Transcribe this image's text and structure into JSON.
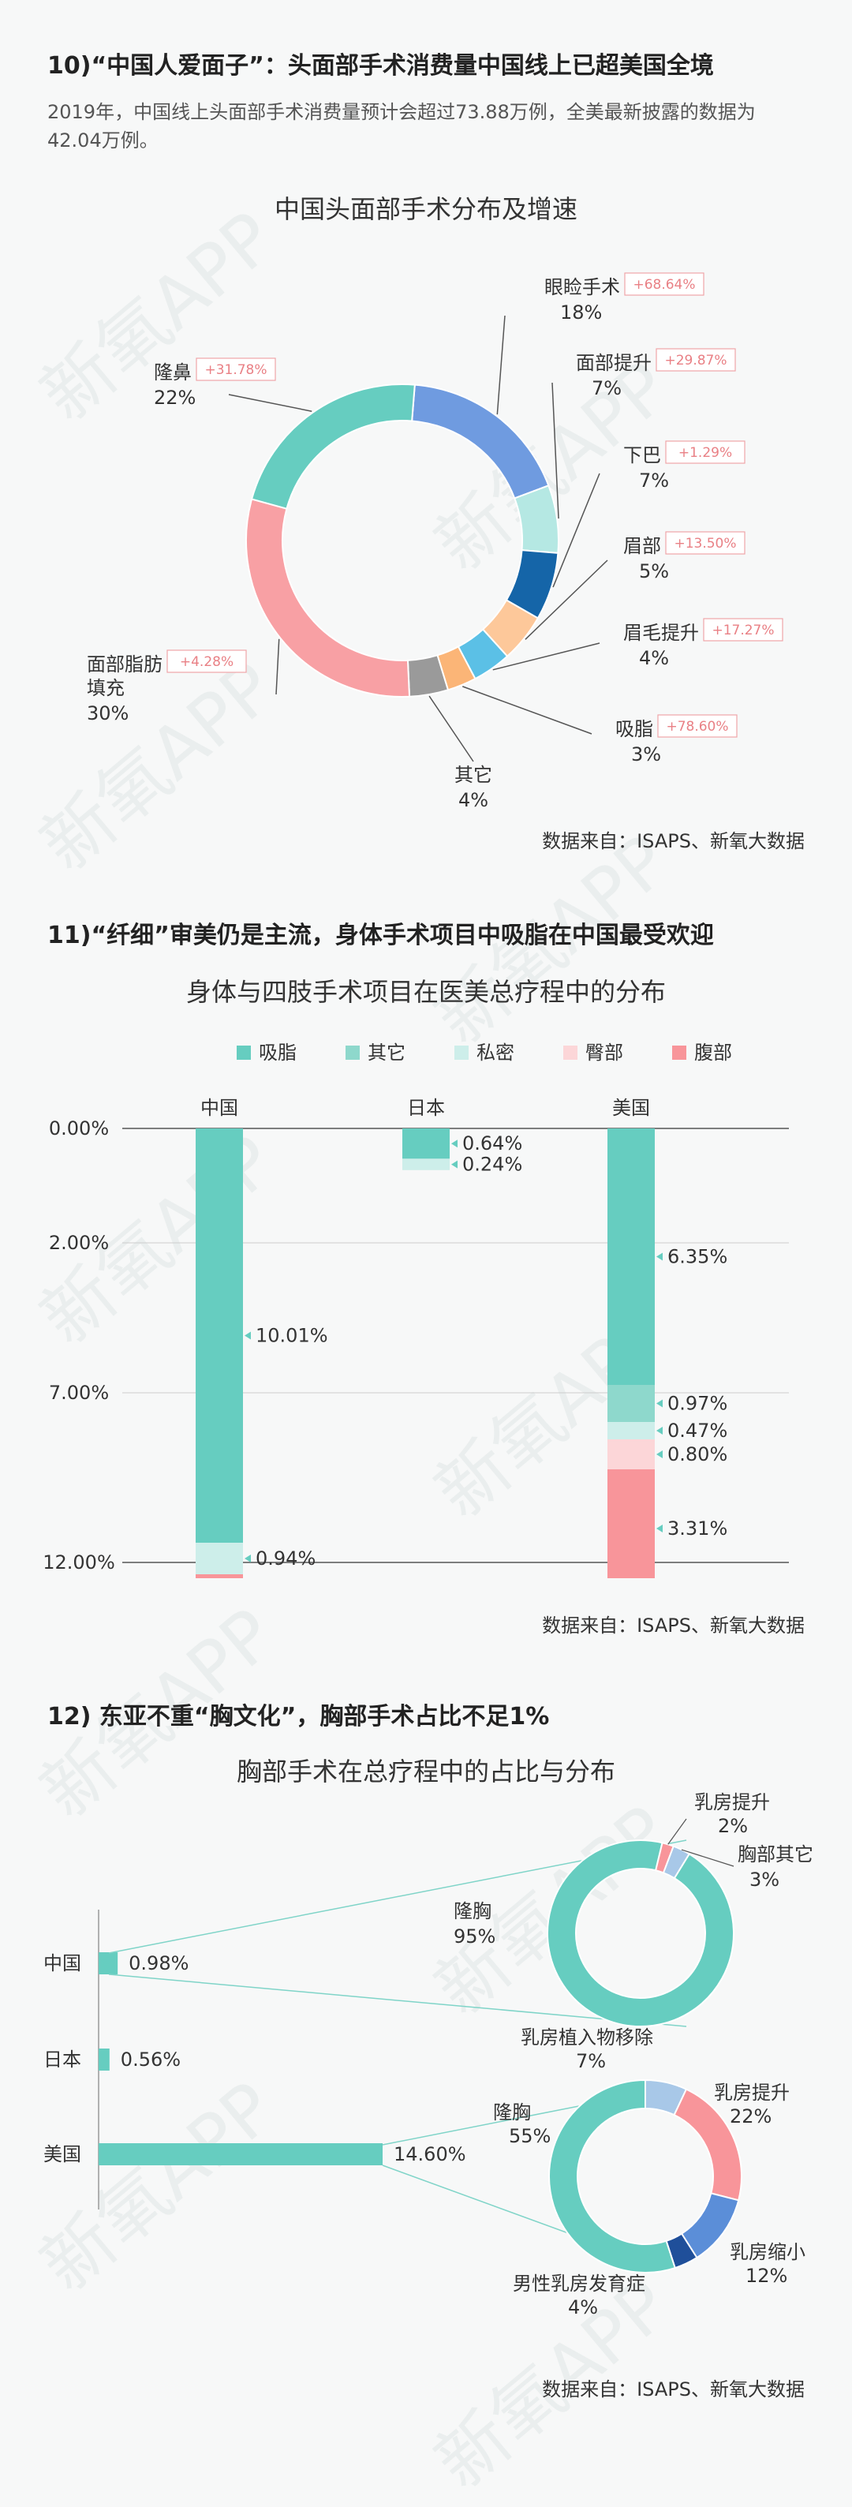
{
  "section10": {
    "heading": "10)“中国人爱面子”：头面部手术消费量中国线上已超美国全境",
    "subtitle": "2019年，中国线上头面部手术消费量预计会超过73.88万例，全美最新披露的数据为42.04万例。",
    "source": "数据来自：ISAPS、新氧大数据"
  },
  "section11": {
    "heading": "11)“纤细”审美仍是主流，身体手术项目中吸脂在中国最受欢迎",
    "source": "数据来自：ISAPS、新氧大数据"
  },
  "section12": {
    "heading": "12) 东亚不重“胸文化”，胸部手术占比不足1%",
    "source": "数据来自：ISAPS、新氧大数据"
  },
  "watermark": "新氧APP",
  "chart_data": [
    {
      "type": "pie",
      "title": "中国头面部手术分布及增速",
      "slices": [
        {
          "label": "眼睑手术",
          "value": 18,
          "growth": "+68.64%",
          "color": "#6f9be0"
        },
        {
          "label": "面部提升",
          "value": 7,
          "growth": "+29.87%",
          "color": "#b5e8e3"
        },
        {
          "label": "下巴",
          "value": 7,
          "growth": "+1.29%",
          "color": "#1565a8"
        },
        {
          "label": "眉部",
          "value": 5,
          "growth": "+13.50%",
          "color": "#fdc89a"
        },
        {
          "label": "眉毛提升",
          "value": 4,
          "growth": "+17.27%",
          "color": "#5bc0e6"
        },
        {
          "label": "吸脂",
          "value": 3,
          "growth": "+78.60%",
          "color": "#fbb577"
        },
        {
          "label": "其它",
          "value": 4,
          "growth": "",
          "color": "#9a9a9a"
        },
        {
          "label": "面部脂肪填充",
          "value": 30,
          "growth": "+4.28%",
          "color": "#f8a0a4"
        },
        {
          "label": "隆鼻",
          "value": 22,
          "growth": "+31.78%",
          "color": "#66cdc0"
        }
      ]
    },
    {
      "type": "bar",
      "title": "身体与四肢手术项目在医美总疗程中的分布",
      "legend": [
        {
          "name": "吸脂",
          "color": "#66cdc0"
        },
        {
          "name": "其它",
          "color": "#8ed8cc"
        },
        {
          "name": "私密",
          "color": "#cdeeea"
        },
        {
          "name": "臀部",
          "color": "#fcd6d8"
        },
        {
          "name": "腹部",
          "color": "#f8959a"
        }
      ],
      "categories": [
        "中国",
        "日本",
        "美国"
      ],
      "y_ticks": [
        "0.00%",
        "2.00%",
        "7.00%",
        "12.00%"
      ],
      "stacks": [
        [
          {
            "series": "吸脂",
            "value": 10.01,
            "label": "10.01%"
          },
          {
            "series": "私密",
            "value": 0.94,
            "label": "0.94%"
          },
          {
            "series": "腹部",
            "value": 0.12,
            "label": ""
          }
        ],
        [
          {
            "series": "吸脂",
            "value": 0.64,
            "label": "0.64%"
          },
          {
            "series": "私密",
            "value": 0.24,
            "label": "0.24%"
          }
        ],
        [
          {
            "series": "吸脂",
            "value": 6.35,
            "label": "6.35%"
          },
          {
            "series": "其它",
            "value": 0.97,
            "label": "0.97%"
          },
          {
            "series": "私密",
            "value": 0.47,
            "label": "0.47%"
          },
          {
            "series": "臀部",
            "value": 0.8,
            "label": "0.80%"
          },
          {
            "series": "腹部",
            "value": 3.31,
            "label": "3.31%"
          }
        ]
      ]
    },
    {
      "type": "bar",
      "title": "胸部手术在总疗程中的占比与分布",
      "categories": [
        "中国",
        "日本",
        "美国"
      ],
      "values": [
        0.98,
        0.56,
        14.6
      ],
      "value_labels": [
        "0.98%",
        "0.56%",
        "14.60%"
      ],
      "color": "#66cdc0"
    },
    {
      "type": "pie",
      "slices": [
        {
          "label": "隆胸",
          "value": 95,
          "color": "#66cdc0"
        },
        {
          "label": "乳房提升",
          "value": 2,
          "color": "#f8959a"
        },
        {
          "label": "胸部其它",
          "value": 3,
          "color": "#a8c8e8"
        }
      ]
    },
    {
      "type": "pie",
      "slices": [
        {
          "label": "隆胸",
          "value": 55,
          "color": "#66cdc0"
        },
        {
          "label": "乳房植入物移除",
          "value": 7,
          "color": "#a8c8e8"
        },
        {
          "label": "乳房提升",
          "value": 22,
          "color": "#f8959a"
        },
        {
          "label": "乳房缩小",
          "value": 12,
          "color": "#5b8ed8"
        },
        {
          "label": "男性乳房发育症",
          "value": 4,
          "color": "#1f4f9a"
        }
      ]
    }
  ]
}
